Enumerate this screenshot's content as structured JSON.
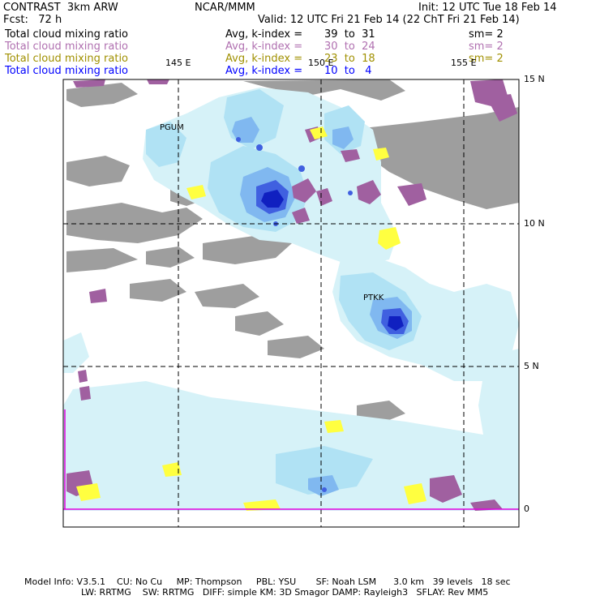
{
  "header": {
    "left1": "CONTRAST  3km ARW",
    "center1": "NCAR/MMM",
    "right1": "Init: 12 UTC Tue 18 Feb 14",
    "left2": "Fcst:   72 h",
    "right2": "Valid: 12 UTC Fri 21 Feb 14 (22 ChT Fri 21 Feb 14)"
  },
  "legend": [
    {
      "field": "Total cloud mixing ratio",
      "stat": "Avg, k-index =",
      "range": "39  to  31",
      "sm": "sm= 2",
      "color": "#000000"
    },
    {
      "field": "Total cloud mixing ratio",
      "stat": "Avg, k-index =",
      "range": "30  to  24",
      "sm": "sm= 2",
      "color": "#b070b0"
    },
    {
      "field": "Total cloud mixing ratio",
      "stat": "Avg, k-index =",
      "range": "23  to  18",
      "sm": "sm= 2",
      "color": "#a09000"
    },
    {
      "field": "Total cloud mixing ratio",
      "stat": "Avg, k-index =",
      "range": "10  to   4",
      "sm": "",
      "color": "#0000ff"
    }
  ],
  "map": {
    "lon_labels": [
      "145 E",
      "150 E",
      "155 E"
    ],
    "lat_labels": [
      "15 N",
      "10 N",
      "5 N",
      "0"
    ],
    "stations": [
      "PGUM",
      "PTKK"
    ],
    "colors": {
      "gray": "#9e9e9e",
      "light_cyan": "#d6f2f8",
      "cyan": "#b0e2f4",
      "light_blue": "#80b8f0",
      "blue": "#4060e0",
      "dark_blue": "#1020c0",
      "purple": "#a060a0",
      "yellow": "#ffff40",
      "magenta": "#e000e0"
    }
  },
  "footer": {
    "line1": "Model Info: V3.5.1    CU: No Cu     MP: Thompson     PBL: YSU       SF: Noah LSM      3.0 km   39 levels   18 sec",
    "line2": "LW: RRTMG    SW: RRTMG   DIFF: simple KM: 3D Smagor DAMP: Rayleigh3   SFLAY: Rev MM5"
  }
}
